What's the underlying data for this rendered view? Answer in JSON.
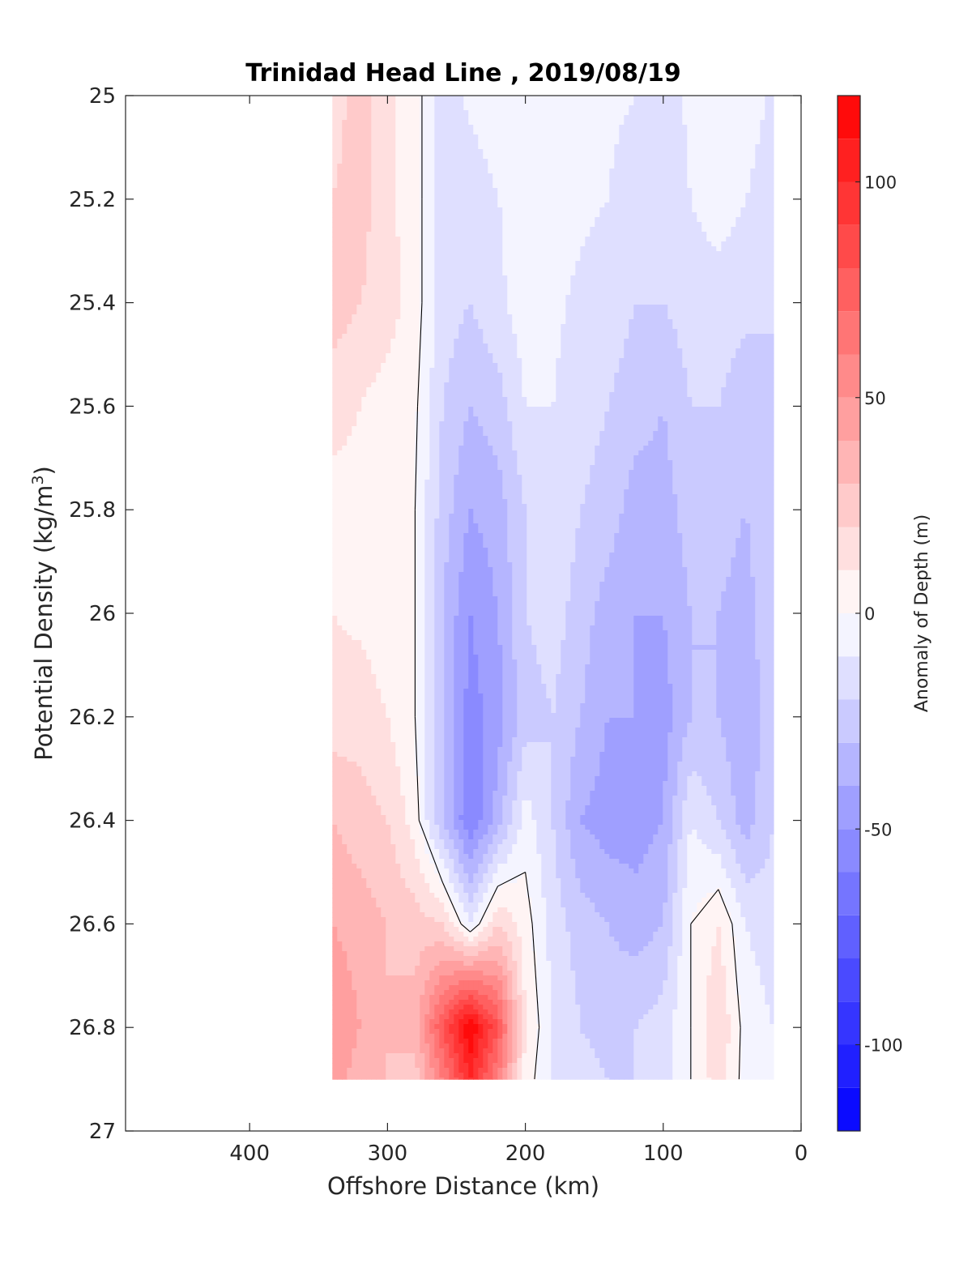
{
  "chart_data": {
    "type": "heatmap",
    "subtype": "filled-contour",
    "title": "Trinidad Head Line , 2019/08/19",
    "xlabel": "Offshore Distance (km)",
    "ylabel_main": "Potential Density (kg/m",
    "ylabel_sup": "3",
    "ylabel_end": ")",
    "xlim": [
      490,
      0
    ],
    "x_reversed": true,
    "ylim": [
      25,
      27
    ],
    "y_reversed": true,
    "xticks": [
      400,
      300,
      200,
      100,
      0
    ],
    "xtick_labels": [
      "400",
      "300",
      "200",
      "100",
      "0"
    ],
    "yticks": [
      25,
      25.2,
      25.4,
      25.6,
      25.8,
      26,
      26.2,
      26.4,
      26.6,
      26.8,
      27
    ],
    "ytick_labels": [
      "25",
      "25.2",
      "25.4",
      "25.6",
      "25.8",
      "26",
      "26.2",
      "26.4",
      "26.6",
      "26.8",
      "27"
    ],
    "grid": false,
    "colorbar": {
      "label": "Anomaly of Depth (m)",
      "range": [
        -120,
        120
      ],
      "level_step": 10,
      "colormap": "blue-white-red",
      "negative_color": "#0000ff",
      "positive_color": "#ff0000",
      "zero_color": "#ffffff",
      "ticks": [
        100,
        50,
        0,
        -50,
        -100
      ],
      "tick_labels": [
        "100",
        "50",
        "0",
        "-50",
        "-100"
      ]
    },
    "data_extent": {
      "x": [
        20,
        340
      ],
      "y": [
        25,
        26.9
      ]
    },
    "stations_km": [
      340,
      320,
      300,
      280,
      260,
      240,
      220,
      200,
      180,
      160,
      140,
      120,
      100,
      80,
      60,
      40,
      20
    ],
    "densities": [
      25.0,
      25.2,
      25.4,
      25.6,
      25.8,
      26.0,
      26.2,
      26.4,
      26.6,
      26.8,
      26.9
    ],
    "values_m": [
      [
        15,
        25,
        12,
        5,
        -15,
        -8,
        -5,
        -5,
        0,
        -5,
        -8,
        -10,
        -15,
        -8,
        0,
        -5,
        -12
      ],
      [
        20,
        25,
        12,
        5,
        -15,
        -15,
        -10,
        -8,
        -5,
        -8,
        -10,
        -15,
        -15,
        -10,
        -5,
        -10,
        -15
      ],
      [
        25,
        20,
        15,
        5,
        -15,
        -20,
        -12,
        -5,
        -8,
        -12,
        -15,
        -20,
        -20,
        -15,
        -15,
        -18,
        -20
      ],
      [
        15,
        10,
        5,
        2,
        -20,
        -30,
        -25,
        -10,
        -10,
        -15,
        -20,
        -25,
        -30,
        -20,
        -20,
        -25,
        -20
      ],
      [
        5,
        5,
        2,
        0,
        -25,
        -40,
        -35,
        -20,
        -12,
        -20,
        -25,
        -35,
        -35,
        -25,
        -25,
        -30,
        -20
      ],
      [
        10,
        8,
        5,
        0,
        -30,
        -50,
        -40,
        -20,
        -15,
        -25,
        -35,
        -40,
        -40,
        -30,
        -30,
        -35,
        -20
      ],
      [
        15,
        15,
        10,
        0,
        -30,
        -55,
        -45,
        -25,
        -20,
        -30,
        -40,
        -40,
        -45,
        -30,
        -30,
        -40,
        -20
      ],
      [
        30,
        25,
        20,
        5,
        -30,
        -60,
        -35,
        -5,
        -20,
        -40,
        -45,
        -45,
        -40,
        -10,
        -20,
        -35,
        -20
      ],
      [
        40,
        35,
        30,
        25,
        20,
        -10,
        20,
        5,
        -15,
        -25,
        -30,
        -35,
        -30,
        0,
        10,
        -10,
        -15
      ],
      [
        50,
        40,
        30,
        35,
        80,
        120,
        80,
        10,
        -10,
        -20,
        -25,
        -20,
        -15,
        0,
        20,
        -5,
        -10
      ],
      [
        45,
        35,
        30,
        25,
        60,
        100,
        60,
        5,
        -10,
        -15,
        -20,
        -20,
        -15,
        0,
        15,
        -5,
        -10
      ]
    ]
  }
}
